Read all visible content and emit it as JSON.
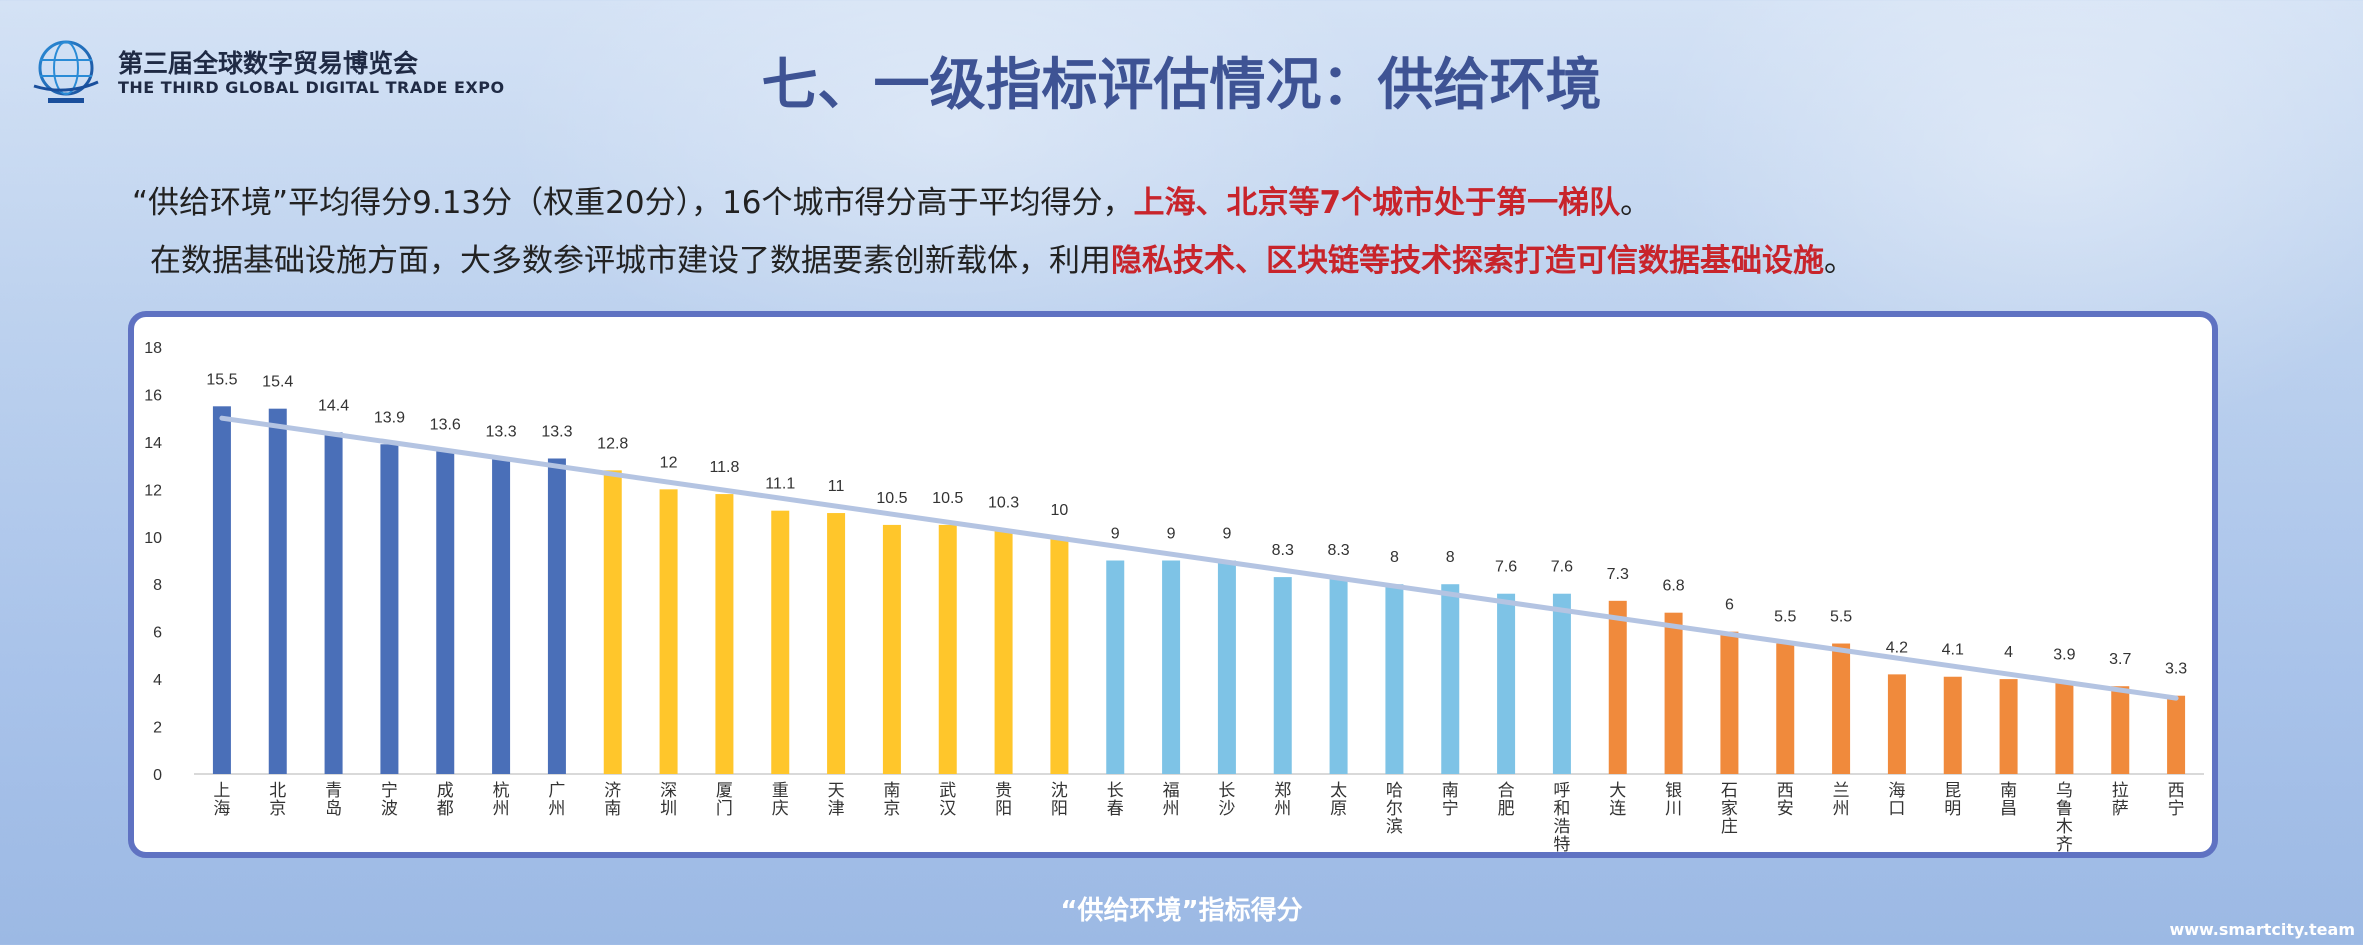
{
  "header": {
    "logo_cn": "第三届全球数字贸易博览会",
    "logo_en": "THE THIRD GLOBAL DIGITAL TRADE EXPO",
    "title": "七、一级指标评估情况：供给环境"
  },
  "summary": {
    "line1_normal": "“供给环境”平均得分9.13分（权重20分），16个城市得分高于平均得分，",
    "line1_red": "上海、北京等7个城市处于第一梯队",
    "line1_end": "。",
    "line2_normal": "在数据基础设施方面，大多数参评城市建设了数据要素创新载体，利用",
    "line2_red": "隐私技术、区块链等技术探索打造可信数据基础设施",
    "line2_end": "。"
  },
  "chart_caption": "“供给环境”指标得分",
  "footer_url": "www.smartcity.team",
  "colors": {
    "tier1": "#4a6fb8",
    "tier2": "#ffc62b",
    "tier3": "#7ec3e6",
    "tier4": "#f08a3c",
    "trend": "#b4c4e2",
    "title": "#3e5394",
    "highlight": "#c8242b"
  },
  "chart_data": {
    "type": "bar",
    "ylim": [
      0,
      18
    ],
    "yticks": [
      0,
      2,
      4,
      6,
      8,
      10,
      12,
      14,
      16,
      18
    ],
    "categories": [
      "上海",
      "北京",
      "青岛",
      "宁波",
      "成都",
      "杭州",
      "广州",
      "济南",
      "深圳",
      "厦门",
      "重庆",
      "天津",
      "南京",
      "武汉",
      "贵阳",
      "沈阳",
      "长春",
      "福州",
      "长沙",
      "郑州",
      "太原",
      "哈尔滨",
      "南宁",
      "合肥",
      "呼和浩特",
      "大连",
      "银川",
      "石家庄",
      "西安",
      "兰州",
      "海口",
      "昆明",
      "南昌",
      "乌鲁木齐",
      "拉萨",
      "西宁"
    ],
    "values": [
      15.5,
      15.4,
      14.4,
      13.9,
      13.6,
      13.3,
      13.3,
      12.8,
      12,
      11.8,
      11.1,
      11,
      10.5,
      10.5,
      10.3,
      10,
      9,
      9,
      9,
      8.3,
      8.3,
      8,
      8,
      7.6,
      7.6,
      7.3,
      6.8,
      6,
      5.5,
      5.5,
      4.2,
      4.1,
      4,
      3.9,
      3.7,
      3.3
    ],
    "value_labels": [
      "15.5",
      "15.4",
      "14.4",
      "13.9",
      "13.6",
      "13.3",
      "13.3",
      "12.8",
      "12",
      "11.8",
      "11.1",
      "11",
      "10.5",
      "10.5",
      "10.3",
      "10",
      "9",
      "9",
      "9",
      "8.3",
      "8.3",
      "8",
      "8",
      "7.6",
      "7.6",
      "7.3",
      "6.8",
      "6",
      "5.5",
      "5.5",
      "4.2",
      "4.1",
      "4",
      "3.9",
      "3.7",
      "3.3"
    ],
    "tiers": [
      1,
      1,
      1,
      1,
      1,
      1,
      1,
      2,
      2,
      2,
      2,
      2,
      2,
      2,
      2,
      2,
      3,
      3,
      3,
      3,
      3,
      3,
      3,
      3,
      3,
      4,
      4,
      4,
      4,
      4,
      4,
      4,
      4,
      4,
      4,
      4
    ],
    "trendline": {
      "type": "linear",
      "start": 15.0,
      "end": 3.2
    },
    "grid": false,
    "legend": "none"
  }
}
